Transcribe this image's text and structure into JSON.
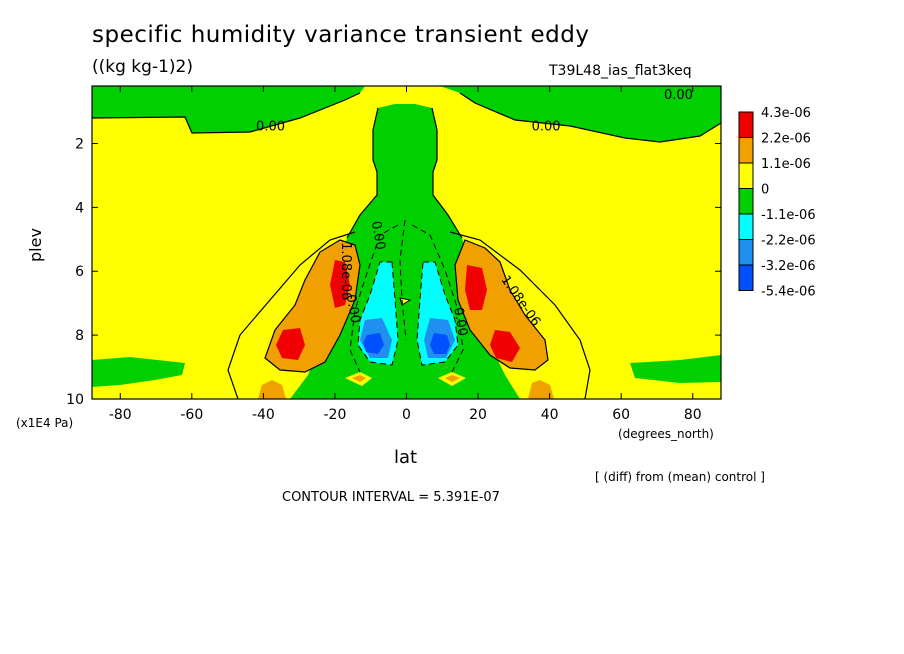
{
  "colors": {
    "red": "#f00000",
    "orange": "#f0a000",
    "yellow": "#ffff00",
    "green": "#00d000",
    "cyan": "#00ffff",
    "mid_blue": "#2090f0",
    "blue": "#0050ff",
    "line": "#000000"
  },
  "chart_data": {
    "type": "heatmap",
    "title": "specific humidity variance transient eddy",
    "units": "((kg kg-1)2)",
    "experiment": "T39L48_ias_flat3keq",
    "xlabel": "lat",
    "x_units": "(degrees_north)",
    "ylabel": "plev",
    "y_units": "(x1E4 Pa)",
    "x_ticks": [
      "-80",
      "-60",
      "-40",
      "-20",
      "0",
      "20",
      "40",
      "60",
      "80"
    ],
    "x_tick_values": [
      -80,
      -60,
      -40,
      -20,
      0,
      20,
      40,
      60,
      80
    ],
    "y_ticks": [
      "2",
      "4",
      "6",
      "8",
      "10"
    ],
    "y_tick_values": [
      2,
      4,
      6,
      8,
      10
    ],
    "xlim": [
      -87.9,
      87.9
    ],
    "ylim": [
      10,
      0.2
    ],
    "note": "[ (diff) from (mean) control ]",
    "contour_interval": "CONTOUR INTERVAL = 5.391E-07",
    "contour_labels": [
      {
        "text": "0.00",
        "lat": 76,
        "plev": 0.6
      },
      {
        "text": "0.00",
        "lat": -38,
        "plev": 1.6
      },
      {
        "text": "0.00",
        "lat": 39,
        "plev": 1.6
      },
      {
        "text": "0.00",
        "lat": -9,
        "plev": 4.9
      },
      {
        "text": "0.00",
        "lat": -16,
        "plev": 7.2
      },
      {
        "text": "0.00",
        "lat": 14,
        "plev": 7.6
      },
      {
        "text": "1.08e-06",
        "lat": -18,
        "plev": 6.0
      },
      {
        "text": "1.08e-06",
        "lat": 31,
        "plev": 7.0
      }
    ],
    "legend": {
      "levels": [
        "4.3e-06",
        "2.2e-06",
        "1.1e-06",
        "0",
        "-1.1e-06",
        "-2.2e-06",
        "-3.2e-06",
        "-5.4e-06"
      ],
      "colors": [
        "#f00000",
        "#f0a000",
        "#ffff00",
        "#00d000",
        "#00ffff",
        "#2090f0",
        "#0050ff"
      ]
    }
  }
}
